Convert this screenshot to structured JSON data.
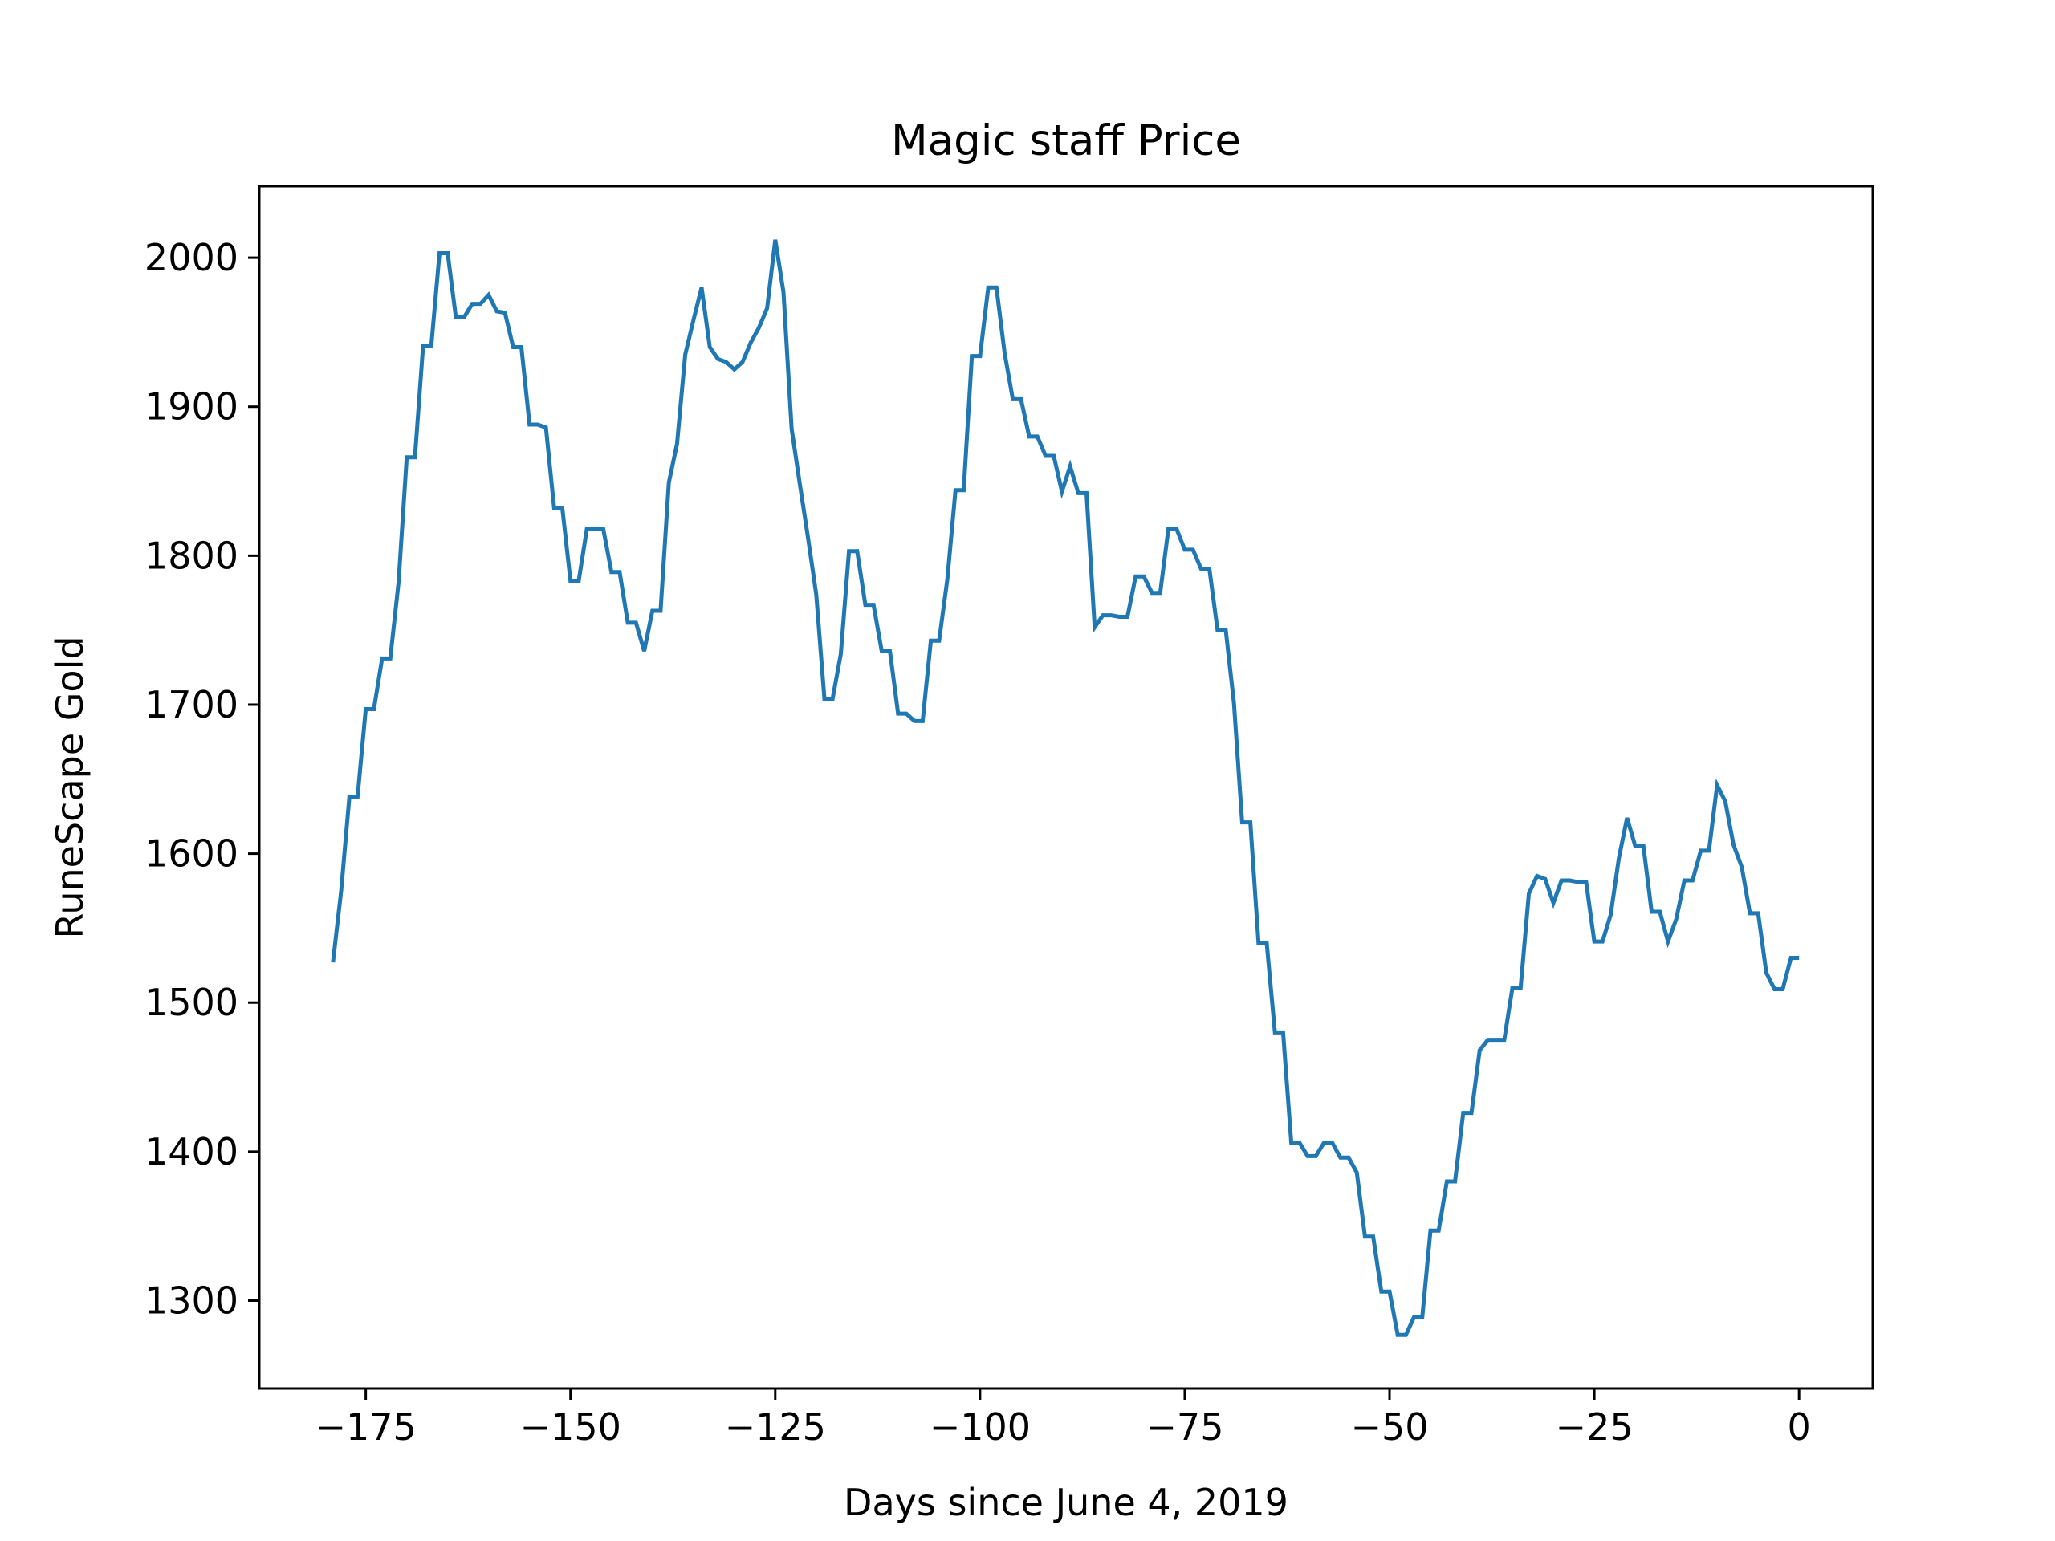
{
  "chart_data": {
    "type": "line",
    "title": "Magic staff Price",
    "xlabel": "Days since June 4, 2019",
    "ylabel": "RuneScape Gold",
    "xlim": [
      -188,
      9
    ],
    "ylim": [
      1241,
      2048
    ],
    "grid": false,
    "x_ticks": [
      -175,
      -150,
      -125,
      -100,
      -75,
      -50,
      -25,
      0
    ],
    "x_tick_labels": [
      "−175",
      "−150",
      "−125",
      "−100",
      "−75",
      "−50",
      "−25",
      "0"
    ],
    "y_ticks": [
      1300,
      1400,
      1500,
      1600,
      1700,
      1800,
      1900,
      2000
    ],
    "y_tick_labels": [
      "1300",
      "1400",
      "1500",
      "1600",
      "1700",
      "1800",
      "1900",
      "2000"
    ],
    "colors": {
      "series": "#1f77b4"
    },
    "series": [
      {
        "x": [
          -179,
          -178,
          -177,
          -176,
          -175,
          -174,
          -173,
          -172,
          -171,
          -170,
          -169,
          -168,
          -167,
          -166,
          -165,
          -164,
          -163,
          -162,
          -161,
          -160,
          -159,
          -158,
          -157,
          -156,
          -155,
          -154,
          -153,
          -152,
          -151,
          -150,
          -149,
          -148,
          -147,
          -146,
          -145,
          -144,
          -143,
          -142,
          -141,
          -140,
          -139,
          -138,
          -137,
          -136,
          -135,
          -134,
          -133,
          -132,
          -131,
          -130,
          -129,
          -128,
          -127,
          -126,
          -125,
          -124,
          -123,
          -122,
          -121,
          -120,
          -119,
          -118,
          -117,
          -116,
          -115,
          -114,
          -113,
          -112,
          -111,
          -110,
          -109,
          -108,
          -107,
          -106,
          -105,
          -104,
          -103,
          -102,
          -101,
          -100,
          -99,
          -98,
          -97,
          -96,
          -95,
          -94,
          -93,
          -92,
          -91,
          -90,
          -89,
          -88,
          -87,
          -86,
          -85,
          -84,
          -83,
          -82,
          -81,
          -80,
          -79,
          -78,
          -77,
          -76,
          -75,
          -74,
          -73,
          -72,
          -71,
          -70,
          -69,
          -68,
          -67,
          -66,
          -65,
          -64,
          -63,
          -62,
          -61,
          -60,
          -59,
          -58,
          -57,
          -56,
          -55,
          -54,
          -53,
          -52,
          -51,
          -50,
          -49,
          -48,
          -47,
          -46,
          -45,
          -44,
          -43,
          -42,
          -41,
          -40,
          -39,
          -38,
          -37,
          -36,
          -35,
          -34,
          -33,
          -32,
          -31,
          -30,
          -29,
          -28,
          -27,
          -26,
          -25,
          -24,
          -23,
          -22,
          -21,
          -20,
          -19,
          -18,
          -17,
          -16,
          -15,
          -14,
          -13,
          -12,
          -11,
          -10,
          -9,
          -8,
          -7,
          -6,
          -5,
          -4,
          -3,
          -2,
          -1,
          0
        ],
        "y": [
          1527,
          1575,
          1638,
          1638,
          1697,
          1697,
          1731,
          1731,
          1782,
          1866,
          1866,
          1941,
          1941,
          2003,
          2003,
          1960,
          1960,
          1969,
          1969,
          1975,
          1964,
          1963,
          1940,
          1940,
          1888,
          1888,
          1886,
          1832,
          1832,
          1783,
          1783,
          1818,
          1818,
          1818,
          1789,
          1789,
          1755,
          1755,
          1736,
          1763,
          1763,
          1849,
          1875,
          1935,
          1958,
          1980,
          1940,
          1932,
          1930,
          1925,
          1930,
          1943,
          1953,
          1966,
          2012,
          1977,
          1885,
          1848,
          1812,
          1774,
          1704,
          1704,
          1734,
          1803,
          1803,
          1767,
          1767,
          1736,
          1736,
          1694,
          1694,
          1689,
          1689,
          1743,
          1743,
          1784,
          1844,
          1844,
          1934,
          1934,
          1980,
          1980,
          1936,
          1905,
          1905,
          1880,
          1880,
          1867,
          1867,
          1843,
          1860,
          1842,
          1842,
          1752,
          1760,
          1760,
          1759,
          1759,
          1786,
          1786,
          1775,
          1775,
          1818,
          1818,
          1804,
          1804,
          1791,
          1791,
          1750,
          1750,
          1701,
          1621,
          1621,
          1540,
          1540,
          1480,
          1480,
          1406,
          1406,
          1397,
          1397,
          1406,
          1406,
          1396,
          1396,
          1386,
          1343,
          1343,
          1306,
          1306,
          1277,
          1277,
          1289,
          1289,
          1347,
          1347,
          1380,
          1380,
          1426,
          1426,
          1468,
          1475,
          1475,
          1475,
          1510,
          1510,
          1573,
          1585,
          1583,
          1567,
          1582,
          1582,
          1581,
          1581,
          1541,
          1541,
          1559,
          1597,
          1624,
          1605,
          1605,
          1561,
          1561,
          1541,
          1556,
          1582,
          1582,
          1602,
          1602,
          1646,
          1635,
          1606,
          1591,
          1560,
          1560,
          1520,
          1509,
          1509,
          1530,
          1530
        ]
      }
    ]
  }
}
